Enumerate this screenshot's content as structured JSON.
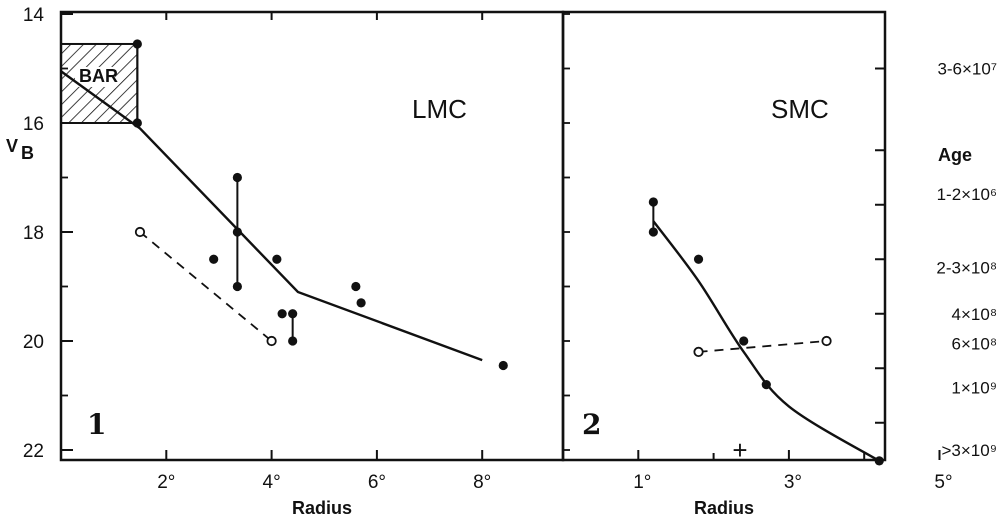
{
  "colors": {
    "ink": "#111111",
    "background": "#ffffff"
  },
  "chart_data": [
    {
      "type": "scatter",
      "panel_number": "1",
      "label": "LMC",
      "xlabel": "Radius",
      "ylabel_main": "V",
      "ylabel_sub": "B",
      "xlim": [
        0,
        9.5
      ],
      "ylim": [
        22.5,
        14
      ],
      "y_inverted": true,
      "x_ticks": [
        2,
        4,
        6,
        8
      ],
      "x_tick_labels": [
        "2°",
        "4°",
        "6°",
        "8°"
      ],
      "y_ticks": [
        14,
        16,
        18,
        20,
        22
      ],
      "y_tick_labels": [
        "14",
        "16",
        "18",
        "20",
        "22"
      ],
      "y_minor_ticks": [
        15,
        17,
        19,
        21
      ],
      "bar_region": {
        "label": "BAR",
        "x": [
          0,
          1.45
        ],
        "y": [
          14.55,
          16.0
        ]
      },
      "filled_points": [
        {
          "x": 1.45,
          "y": 14.55
        },
        {
          "x": 1.45,
          "y": 16.0
        },
        {
          "x": 2.9,
          "y": 18.5
        },
        {
          "x": 3.35,
          "y": 17.0
        },
        {
          "x": 3.35,
          "y": 18.0
        },
        {
          "x": 3.35,
          "y": 19.0
        },
        {
          "x": 4.1,
          "y": 18.5
        },
        {
          "x": 4.2,
          "y": 19.5
        },
        {
          "x": 4.4,
          "y": 19.5
        },
        {
          "x": 4.4,
          "y": 20.0
        },
        {
          "x": 5.6,
          "y": 19.0
        },
        {
          "x": 5.7,
          "y": 19.3
        },
        {
          "x": 8.4,
          "y": 20.45
        }
      ],
      "open_points": [
        {
          "x": 1.5,
          "y": 18.0
        },
        {
          "x": 4.0,
          "y": 20.0
        }
      ],
      "error_bars": [
        {
          "x": 1.45,
          "y1": 14.55,
          "y2": 16.0
        },
        {
          "x": 3.35,
          "y1": 17.0,
          "y2": 19.0
        },
        {
          "x": 4.4,
          "y1": 19.5,
          "y2": 20.0
        }
      ],
      "fit_curve": [
        {
          "x": 0,
          "y": 15.05
        },
        {
          "x": 1.5,
          "y": 16.1
        },
        {
          "x": 4.5,
          "y": 19.1
        },
        {
          "x": 8.0,
          "y": 20.35
        }
      ],
      "dashed_line": [
        {
          "x": 1.5,
          "y": 18.0
        },
        {
          "x": 4.0,
          "y": 20.0
        }
      ]
    },
    {
      "type": "scatter",
      "panel_number": "2",
      "label": "SMC",
      "xlabel": "Radius",
      "xlim": [
        0,
        6
      ],
      "ylim": [
        22.5,
        14
      ],
      "y_inverted": true,
      "x_ticks": [
        1,
        3,
        5
      ],
      "x_tick_labels": [
        "1°",
        "3°",
        "5°"
      ],
      "x_minor_ticks": [
        2,
        4
      ],
      "age_axis_title": "Age",
      "age_labels": [
        {
          "y": 15.0,
          "text": "3-6×10⁷"
        },
        {
          "y": 17.3,
          "text": "1-2×10⁶"
        },
        {
          "y": 18.65,
          "text": "2-3×10⁸"
        },
        {
          "y": 19.5,
          "text": "4×10⁸"
        },
        {
          "y": 20.05,
          "text": "6×10⁸"
        },
        {
          "y": 20.85,
          "text": "1×10⁹"
        },
        {
          "y": 22.0,
          "text": ">3×10⁹"
        }
      ],
      "age_ticks": [
        15.0,
        16.5,
        17.5,
        18.5,
        19.5,
        20.5,
        21.5
      ],
      "filled_points": [
        {
          "x": 1.2,
          "y": 17.45
        },
        {
          "x": 1.2,
          "y": 18.0
        },
        {
          "x": 1.8,
          "y": 18.5
        },
        {
          "x": 2.4,
          "y": 20.0
        },
        {
          "x": 2.7,
          "y": 20.8
        },
        {
          "x": 4.2,
          "y": 22.2
        }
      ],
      "open_points": [
        {
          "x": 1.8,
          "y": 20.2
        },
        {
          "x": 3.5,
          "y": 20.0
        }
      ],
      "error_bars": [
        {
          "x": 1.2,
          "y1": 17.45,
          "y2": 18.0
        }
      ],
      "plus_marker": {
        "x": 2.35,
        "y": 22.0,
        "text": "+"
      },
      "fit_curve": [
        {
          "x": 1.2,
          "y": 17.8
        },
        {
          "x": 1.8,
          "y": 18.9
        },
        {
          "x": 2.4,
          "y": 20.2
        },
        {
          "x": 3.0,
          "y": 21.2
        },
        {
          "x": 4.2,
          "y": 22.2
        }
      ],
      "dashed_line": [
        {
          "x": 1.8,
          "y": 20.2
        },
        {
          "x": 3.5,
          "y": 20.0
        }
      ]
    }
  ]
}
